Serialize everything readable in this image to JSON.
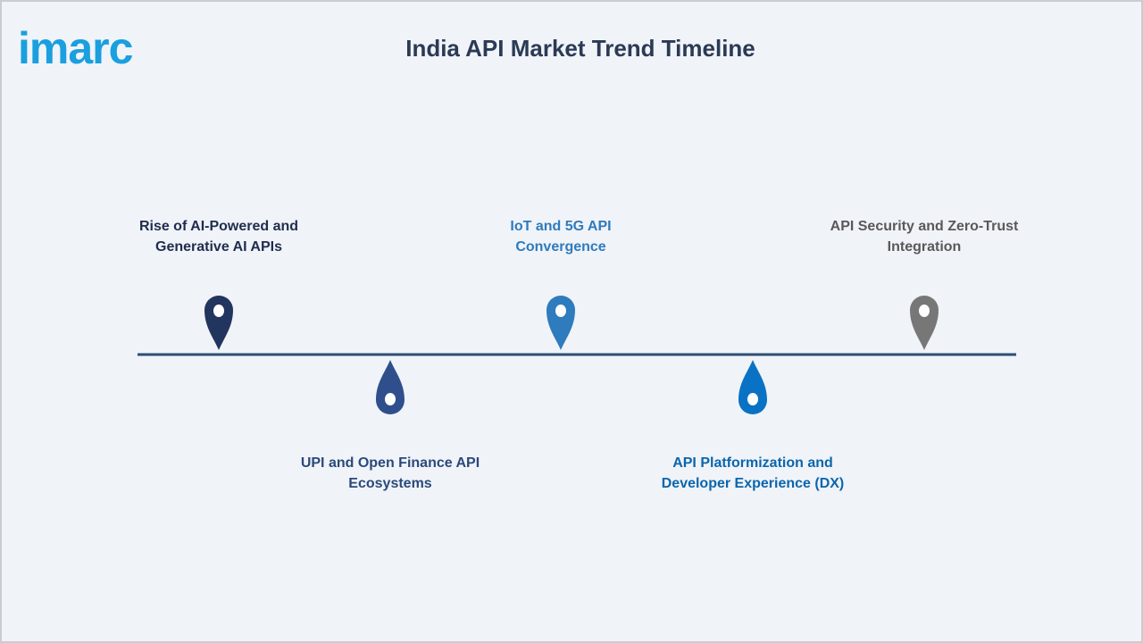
{
  "logo": "imarc",
  "title": "India API Market Trend Timeline",
  "items": [
    {
      "lines": [
        "Rise of AI-Powered and",
        "Generative AI APIs"
      ]
    },
    {
      "lines": [
        "UPI and Open Finance API",
        "Ecosystems"
      ]
    },
    {
      "lines": [
        "IoT and 5G API",
        "Convergence"
      ]
    },
    {
      "lines": [
        "API Platformization and",
        "Developer Experience (DX)"
      ]
    },
    {
      "lines": [
        "API Security and Zero-Trust",
        "Integration"
      ]
    }
  ]
}
